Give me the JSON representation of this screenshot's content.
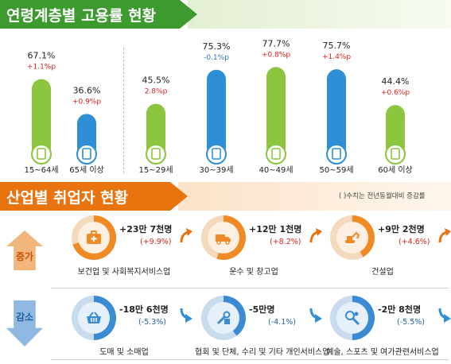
{
  "section1": {
    "title": "연령계층별 고용률 현황"
  },
  "section2": {
    "title": "산업별 취업자 현황",
    "note": "( )수치는 전년동월대비 증감률"
  },
  "chart_data": {
    "type": "bar",
    "groups": [
      [
        "15~64세",
        "65세 이상"
      ],
      [
        "15~29세",
        "30~39세",
        "40~49세",
        "50~59세",
        "60세 이상"
      ]
    ],
    "categories": [
      "15~64세",
      "65세 이상",
      "15~29세",
      "30~39세",
      "40~49세",
      "50~59세",
      "60세 이상"
    ],
    "values": [
      67.1,
      36.6,
      45.5,
      75.3,
      77.7,
      75.7,
      44.4
    ],
    "value_labels": [
      "67.1%",
      "36.6%",
      "45.5%",
      "75.3%",
      "77.7%",
      "75.7%",
      "44.4%"
    ],
    "changes": [
      "+1.1%p",
      "+0.9%p",
      "2.8%p",
      "-0.1%p",
      "+0.8%p",
      "+1.4%p",
      "+0.6%p"
    ],
    "change_colors": [
      "#e02020",
      "#e02020",
      "#e02020",
      "#2e74bd",
      "#e02020",
      "#e02020",
      "#e02020"
    ],
    "bar_colors": [
      "#8cc63f",
      "#2e8fd6",
      "#8cc63f",
      "#2e8fd6",
      "#8cc63f",
      "#2e8fd6",
      "#8cc63f"
    ],
    "ylim": [
      0,
      100
    ]
  },
  "industry": {
    "increase_label": "증가",
    "decrease_label": "감소",
    "increase": [
      {
        "name": "보건업 및 사회복지서비스업",
        "value": "+23만 7천명",
        "change": "(+9.9%)",
        "icon": "first-aid-kit-icon",
        "ring": 0.7
      },
      {
        "name": "운수 및 창고업",
        "value": "+12만 1천명",
        "change": "(+8.2%)",
        "icon": "truck-icon",
        "ring": 0.55
      },
      {
        "name": "건설업",
        "value": "+9만 2천명",
        "change": "(+4.6%)",
        "icon": "excavator-icon",
        "ring": 0.42
      }
    ],
    "decrease": [
      {
        "name": "도매 및 소매업",
        "value": "-18만 6천명",
        "change": "(-5.3%)",
        "icon": "shopping-basket-icon",
        "ring": 0.5
      },
      {
        "name": "협회 및 단체, 수리 및 기타 개인서비스업",
        "value": "-5만명",
        "change": "(-4.1%)",
        "icon": "tools-icon",
        "ring": 0.4
      },
      {
        "name": "예술, 스포츠 및 여가관련서비스업",
        "value": "-2만 8천명",
        "change": "(-5.5%)",
        "icon": "art-sport-icon",
        "ring": 0.5
      }
    ],
    "increase_color": "#f08a24",
    "decrease_color": "#3a8ad4"
  }
}
